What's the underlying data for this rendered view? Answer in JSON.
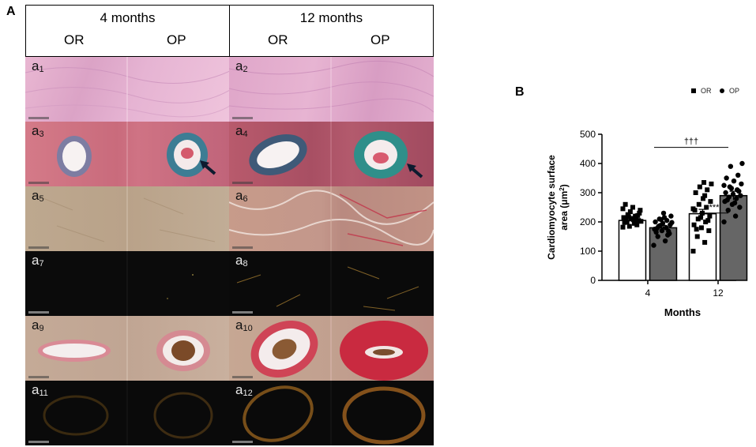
{
  "panel_a": {
    "letter": "A",
    "groups": [
      {
        "title": "4 months",
        "sub_left": "OR",
        "sub_right": "OP"
      },
      {
        "title": "12 months",
        "sub_left": "OR",
        "sub_right": "OP"
      }
    ],
    "rows": [
      {
        "left_label": "a",
        "left_idx": "1",
        "right_label": "a",
        "right_idx": "2"
      },
      {
        "left_label": "a",
        "left_idx": "3",
        "right_label": "a",
        "right_idx": "4"
      },
      {
        "left_label": "a",
        "left_idx": "5",
        "right_label": "a",
        "right_idx": "6"
      },
      {
        "left_label": "a",
        "left_idx": "7",
        "right_label": "a",
        "right_idx": "8"
      },
      {
        "left_label": "a",
        "left_idx": "9",
        "right_label": "a",
        "right_idx": "10"
      },
      {
        "left_label": "a",
        "left_idx": "11",
        "right_label": "a",
        "right_idx": "12"
      }
    ]
  },
  "panel_b": {
    "letter": "B",
    "legend": {
      "or_label": "OR",
      "op_label": "OP"
    },
    "significance": {
      "across": "†††",
      "within": "***"
    }
  },
  "chart_data": {
    "type": "bar",
    "xlabel": "Months",
    "ylabel": "Cardiomyocyte surface area (μm²)",
    "ylabel_line1": "Cardiomyocyte surface",
    "ylabel_line2": "area (μm",
    "ylabel_sup": "2",
    "ylabel_end": ")",
    "categories": [
      "4",
      "12"
    ],
    "ylim": [
      0,
      500
    ],
    "yticks": [
      "0",
      "100",
      "200",
      "300",
      "400",
      "500"
    ],
    "series": [
      {
        "name": "OR",
        "color": "#ffffff",
        "marker": "square",
        "values": [
          205,
          228
        ],
        "errors": [
          6,
          15
        ],
        "points": [
          [
            182,
            195,
            200,
            205,
            210,
            215,
            220,
            225,
            230,
            212,
            198,
            208,
            218,
            240,
            250,
            260,
            190,
            185,
            202,
            207,
            213,
            222,
            235,
            245,
            196
          ],
          [
            100,
            130,
            150,
            170,
            180,
            190,
            200,
            210,
            220,
            230,
            240,
            250,
            260,
            270,
            280,
            300,
            310,
            320,
            330,
            335,
            175,
            205,
            215,
            245,
            290
          ]
        ]
      },
      {
        "name": "OP",
        "color": "#666666",
        "marker": "circle",
        "values": [
          180,
          290
        ],
        "errors": [
          8,
          15
        ],
        "points": [
          [
            120,
            135,
            150,
            160,
            170,
            175,
            180,
            185,
            190,
            195,
            200,
            205,
            210,
            220,
            230,
            165,
            155,
            188,
            198,
            215,
            178,
            168,
            208
          ],
          [
            200,
            220,
            240,
            250,
            260,
            270,
            280,
            285,
            290,
            295,
            300,
            310,
            320,
            330,
            340,
            350,
            360,
            390,
            400,
            265,
            275,
            305,
            315,
            325
          ]
        ]
      }
    ]
  }
}
